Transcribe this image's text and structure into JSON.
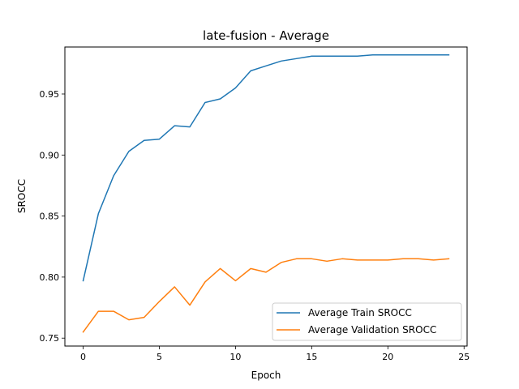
{
  "chart_data": {
    "type": "line",
    "title": "late-fusion - Average",
    "xlabel": "Epoch",
    "ylabel": "SROCC",
    "xlim": [
      -1.2,
      25.2
    ],
    "ylim": [
      0.7435,
      0.9885
    ],
    "x_ticks": [
      0,
      5,
      10,
      15,
      20,
      25
    ],
    "x_tick_labels": [
      "0",
      "5",
      "10",
      "15",
      "20",
      "25"
    ],
    "y_ticks": [
      0.75,
      0.8,
      0.85,
      0.9,
      0.95
    ],
    "y_tick_labels": [
      "0.75",
      "0.80",
      "0.85",
      "0.90",
      "0.95"
    ],
    "grid": false,
    "legend_position": "lower right",
    "x": [
      0,
      1,
      2,
      3,
      4,
      5,
      6,
      7,
      8,
      9,
      10,
      11,
      12,
      13,
      14,
      15,
      16,
      17,
      18,
      19,
      20,
      21,
      22,
      23,
      24
    ],
    "series": [
      {
        "name": "Average Train SROCC",
        "color": "#1f77b4",
        "values": [
          0.797,
          0.852,
          0.883,
          0.903,
          0.912,
          0.913,
          0.924,
          0.923,
          0.943,
          0.946,
          0.955,
          0.969,
          0.973,
          0.977,
          0.979,
          0.981,
          0.981,
          0.981,
          0.981,
          0.982,
          0.982,
          0.982,
          0.982,
          0.982,
          0.982
        ]
      },
      {
        "name": "Average Validation SROCC",
        "color": "#ff7f0e",
        "values": [
          0.755,
          0.772,
          0.772,
          0.765,
          0.767,
          0.78,
          0.792,
          0.777,
          0.796,
          0.807,
          0.797,
          0.807,
          0.804,
          0.812,
          0.815,
          0.815,
          0.813,
          0.815,
          0.814,
          0.814,
          0.814,
          0.815,
          0.815,
          0.814,
          0.815
        ]
      }
    ]
  }
}
